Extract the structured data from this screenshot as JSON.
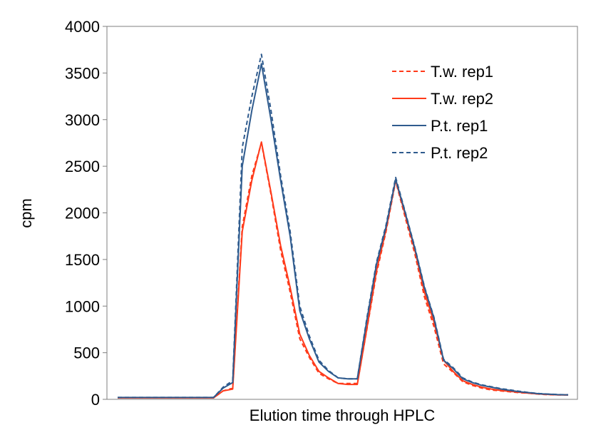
{
  "chart_data": {
    "type": "line",
    "title": "",
    "xlabel": "Elution time through HPLC",
    "ylabel": "cpm",
    "ylim": [
      0,
      4000
    ],
    "yticks": [
      "0",
      "500",
      "1000",
      "1500",
      "2000",
      "2500",
      "3000",
      "3500",
      "4000"
    ],
    "x_tick_labels": "none",
    "grid": false,
    "legend_position": "top-right",
    "series": [
      {
        "name": "T.w. rep1",
        "color": "#ff3a1a",
        "dash": "dashed",
        "values": [
          15,
          15,
          15,
          15,
          15,
          15,
          15,
          15,
          15,
          15,
          15,
          90,
          120,
          1850,
          2400,
          2750,
          2200,
          1600,
          1150,
          650,
          450,
          280,
          220,
          170,
          170,
          170,
          750,
          1350,
          1800,
          2340,
          1950,
          1560,
          1100,
          780,
          380,
          290,
          190,
          150,
          120,
          100,
          90,
          80,
          70,
          65,
          55,
          50,
          48,
          47
        ]
      },
      {
        "name": "T.w. rep2",
        "color": "#ff3a1a",
        "dash": "solid",
        "values": [
          15,
          15,
          15,
          15,
          15,
          15,
          15,
          15,
          15,
          15,
          15,
          90,
          110,
          1800,
          2350,
          2760,
          2220,
          1650,
          1200,
          700,
          470,
          300,
          230,
          170,
          160,
          160,
          760,
          1380,
          1820,
          2350,
          1980,
          1600,
          1150,
          830,
          420,
          300,
          200,
          160,
          130,
          110,
          95,
          85,
          75,
          65,
          57,
          52,
          48,
          47
        ]
      },
      {
        "name": "P.t. rep1",
        "color": "#2f5b8e",
        "dash": "solid",
        "values": [
          20,
          20,
          20,
          20,
          20,
          20,
          20,
          20,
          20,
          20,
          20,
          120,
          180,
          2500,
          3100,
          3600,
          3000,
          2350,
          1750,
          950,
          650,
          400,
          300,
          230,
          220,
          220,
          850,
          1450,
          1850,
          2360,
          2000,
          1620,
          1200,
          870,
          420,
          330,
          220,
          180,
          150,
          130,
          110,
          95,
          80,
          70,
          60,
          55,
          50,
          48
        ]
      },
      {
        "name": "P.t. rep2",
        "color": "#2f5b8e",
        "dash": "dashed",
        "values": [
          20,
          20,
          20,
          20,
          20,
          20,
          20,
          20,
          20,
          20,
          20,
          130,
          200,
          2700,
          3250,
          3700,
          3100,
          2400,
          1800,
          1000,
          680,
          420,
          310,
          230,
          220,
          220,
          870,
          1470,
          1870,
          2380,
          2010,
          1630,
          1210,
          880,
          430,
          340,
          230,
          185,
          155,
          135,
          115,
          100,
          85,
          72,
          62,
          56,
          51,
          49
        ]
      }
    ]
  }
}
